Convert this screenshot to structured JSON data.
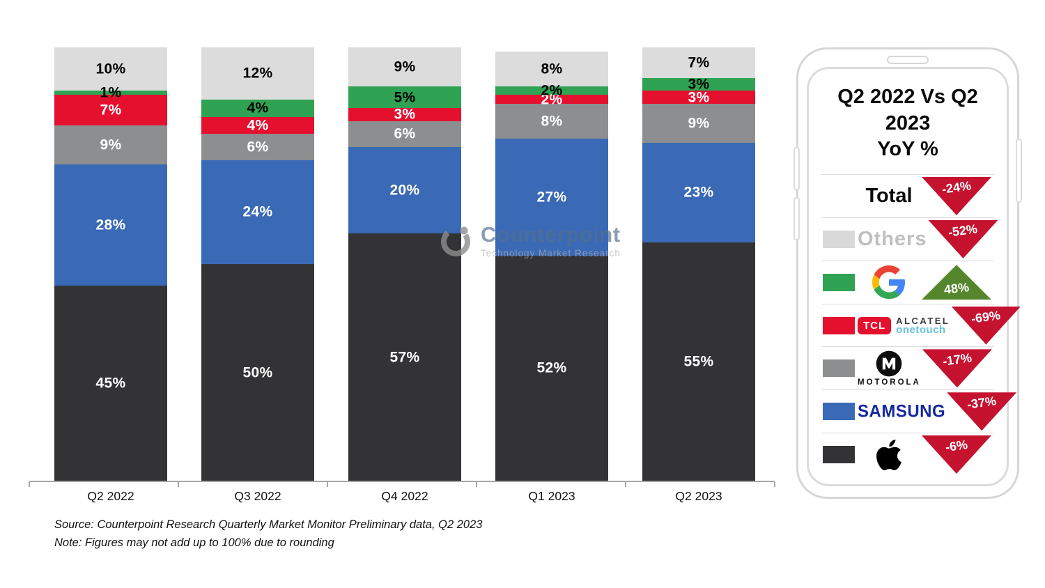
{
  "chart_data": {
    "type": "bar",
    "stacked": true,
    "categories": [
      "Q2 2022",
      "Q3 2022",
      "Q4 2022",
      "Q1 2023",
      "Q2 2023"
    ],
    "series": [
      {
        "name": "Apple",
        "color": "#333336",
        "label_color": "#ffffff",
        "values": [
          45,
          50,
          57,
          52,
          55
        ]
      },
      {
        "name": "Samsung",
        "color": "#3a69b5",
        "label_color": "#ffffff",
        "values": [
          28,
          24,
          20,
          27,
          23
        ]
      },
      {
        "name": "Motorola",
        "color": "#8c8e90",
        "label_color": "#ffffff",
        "values": [
          9,
          6,
          6,
          8,
          9
        ]
      },
      {
        "name": "TCL",
        "color": "#e50f2e",
        "label_color": "#ffffff",
        "values": [
          7,
          4,
          3,
          2,
          3
        ]
      },
      {
        "name": "Google",
        "color": "#2fa353",
        "label_color": "#000000",
        "values": [
          1,
          4,
          5,
          2,
          3
        ]
      },
      {
        "name": "Others",
        "color": "#dcdcdc",
        "label_color": "#000000",
        "values": [
          10,
          12,
          9,
          8,
          7
        ]
      }
    ],
    "ylim": [
      0,
      100
    ],
    "grid": false,
    "legend_position": "right-panel",
    "value_label_suffix": "%"
  },
  "watermark": {
    "name": "Counterpoint",
    "tagline": "Technology Market Research"
  },
  "notes": {
    "source": "Source: Counterpoint Research Quarterly Market Monitor Preliminary data, Q2 2023",
    "rounding": "Note: Figures may not add up to 100% due to rounding"
  },
  "yoy_panel": {
    "title_line1": "Q2 2022 Vs Q2 2023",
    "title_line2": "YoY %",
    "colors": {
      "down": "#c5122f",
      "up": "#55862c"
    },
    "logos": {
      "tcl": "TCL",
      "alcatel": "ALCATEL",
      "onetouch": "onetouch",
      "motorola": "MOTOROLA",
      "samsung": "SAMSUNG"
    },
    "rows": [
      {
        "brand": "Total",
        "change": "-24%",
        "direction": "down",
        "swatch": null
      },
      {
        "brand": "Others",
        "change": "-52%",
        "direction": "down",
        "swatch": "#d9d9d9"
      },
      {
        "brand": "Google",
        "change": "48%",
        "direction": "up",
        "swatch": "#2fa353"
      },
      {
        "brand": "TCL Alcatel onetouch",
        "change": "-69%",
        "direction": "down",
        "swatch": "#e50f2e"
      },
      {
        "brand": "Motorola",
        "change": "-17%",
        "direction": "down",
        "swatch": "#8c8e90"
      },
      {
        "brand": "Samsung",
        "change": "-37%",
        "direction": "down",
        "swatch": "#3a69b5"
      },
      {
        "brand": "Apple",
        "change": "-6%",
        "direction": "down",
        "swatch": "#333336"
      }
    ]
  }
}
